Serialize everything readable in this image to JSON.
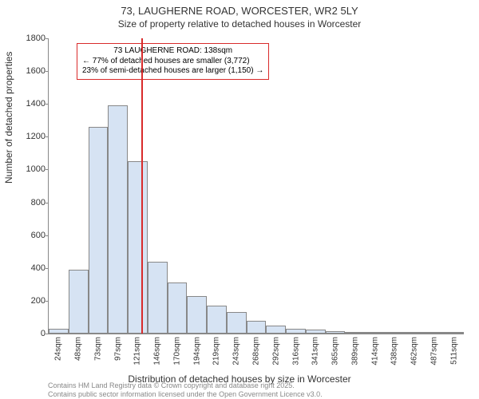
{
  "title": "73, LAUGHERNE ROAD, WORCESTER, WR2 5LY",
  "subtitle": "Size of property relative to detached houses in Worcester",
  "ylabel": "Number of detached properties",
  "xlabel": "Distribution of detached houses by size in Worcester",
  "footnote_line1": "Contains HM Land Registry data © Crown copyright and database right 2025.",
  "footnote_line2": "Contains public sector information licensed under the Open Government Licence v3.0.",
  "chart": {
    "type": "histogram",
    "ylim": [
      0,
      1800
    ],
    "ytick_step": 200,
    "bar_fill": "#d6e3f3",
    "bar_border": "#888888",
    "marker_color": "#d92b2b",
    "annotation_border": "#d92b2b",
    "xtick_labels": [
      "24sqm",
      "48sqm",
      "73sqm",
      "97sqm",
      "121sqm",
      "146sqm",
      "170sqm",
      "194sqm",
      "219sqm",
      "243sqm",
      "268sqm",
      "292sqm",
      "316sqm",
      "341sqm",
      "365sqm",
      "389sqm",
      "414sqm",
      "438sqm",
      "462sqm",
      "487sqm",
      "511sqm"
    ],
    "bar_values": [
      30,
      390,
      1260,
      1390,
      1050,
      440,
      310,
      230,
      170,
      130,
      80,
      50,
      30,
      25,
      15,
      10,
      5,
      5,
      3,
      3,
      3
    ],
    "marker_bin_index": 4,
    "annotation": {
      "line1": "73 LAUGHERNE ROAD: 138sqm",
      "line2": "← 77% of detached houses are smaller (3,772)",
      "line3": "23% of semi-detached houses are larger (1,150) →"
    }
  }
}
